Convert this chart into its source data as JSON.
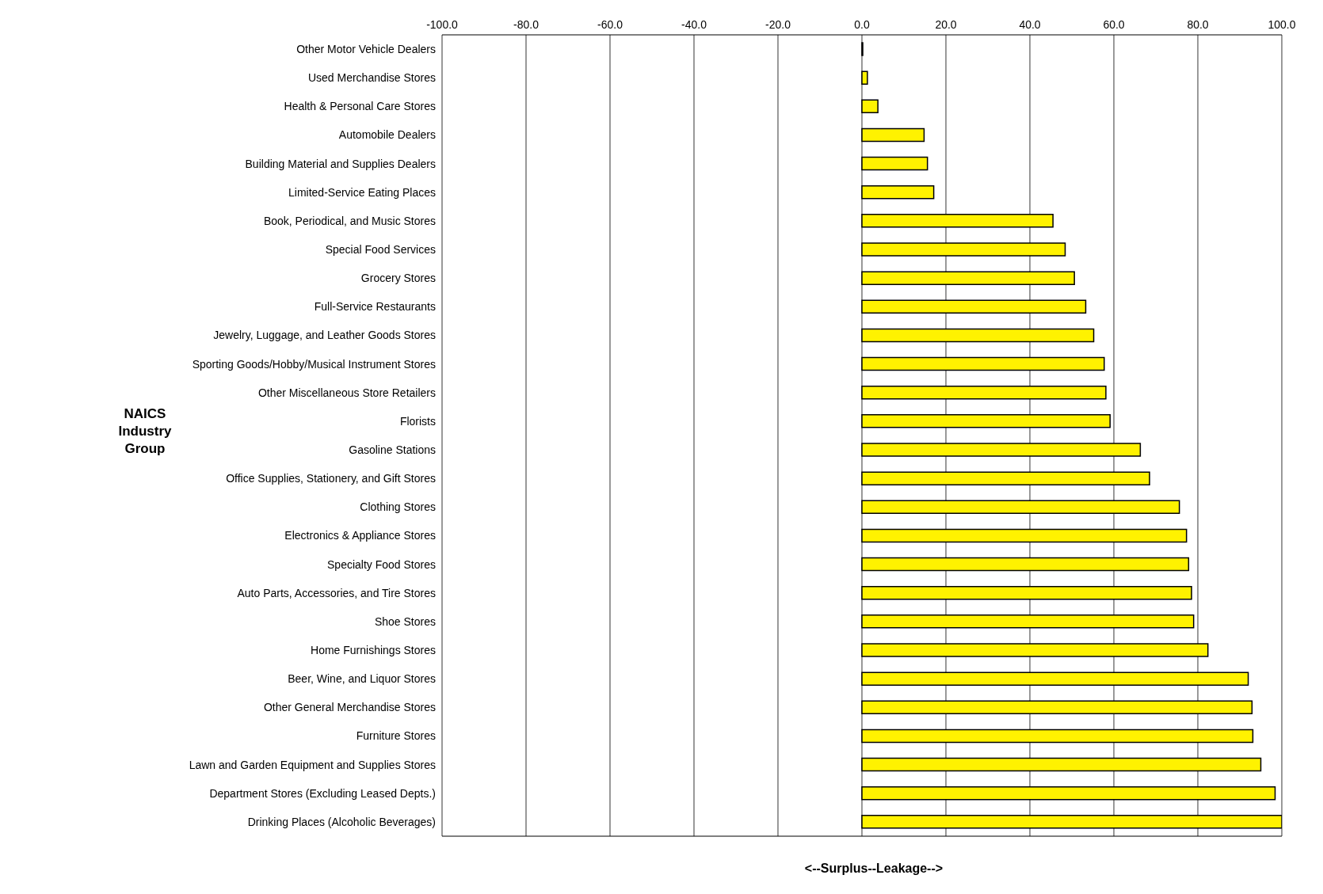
{
  "chart_data": {
    "type": "bar",
    "orientation": "horizontal",
    "ylabel": "NAICS Industry Group",
    "xlabel": "<--Surplus--Leakage-->",
    "categories": [
      "Other Motor Vehicle Dealers",
      "Used Merchandise Stores",
      "Health & Personal Care Stores",
      "Automobile Dealers",
      "Building Material and Supplies Dealers",
      "Limited-Service Eating Places",
      "Book, Periodical, and Music Stores",
      "Special Food Services",
      "Grocery Stores",
      "Full-Service Restaurants",
      "Jewelry, Luggage, and Leather Goods Stores",
      "Sporting Goods/Hobby/Musical Instrument Stores",
      "Other Miscellaneous Store Retailers",
      "Florists",
      "Gasoline Stations",
      "Office Supplies, Stationery, and Gift Stores",
      "Clothing Stores",
      "Electronics & Appliance Stores",
      "Specialty Food Stores",
      "Auto Parts, Accessories, and Tire Stores",
      "Shoe Stores",
      "Home Furnishings Stores",
      "Beer, Wine, and Liquor Stores",
      "Other General Merchandise Stores",
      "Furniture Stores",
      "Lawn and Garden Equipment and Supplies Stores",
      "Department Stores (Excluding Leased Depts.)",
      "Drinking Places (Alcoholic Beverages)"
    ],
    "values": [
      0.2,
      1.3,
      3.8,
      14.8,
      15.6,
      17.1,
      45.5,
      48.4,
      50.6,
      53.3,
      55.2,
      57.7,
      58.1,
      59.1,
      66.3,
      68.5,
      75.6,
      77.3,
      77.8,
      78.5,
      79.0,
      82.4,
      92.0,
      92.9,
      93.1,
      95.0,
      98.4,
      100
    ],
    "color": "#fff200",
    "xlim": [
      -100,
      100
    ],
    "xticks": [
      {
        "value": -100,
        "label": "-100.0"
      },
      {
        "value": -80,
        "label": "-80.0"
      },
      {
        "value": -60,
        "label": "-60.0"
      },
      {
        "value": -40,
        "label": "-40.0"
      },
      {
        "value": -20,
        "label": "-20.0"
      },
      {
        "value": 0,
        "label": "0.0"
      },
      {
        "value": 20,
        "label": "20.0"
      },
      {
        "value": 40,
        "label": "40.0"
      },
      {
        "value": 60,
        "label": "60.0"
      },
      {
        "value": 80,
        "label": "80.0"
      },
      {
        "value": 100,
        "label": "100.0"
      }
    ],
    "grid": "x",
    "legend": false
  }
}
